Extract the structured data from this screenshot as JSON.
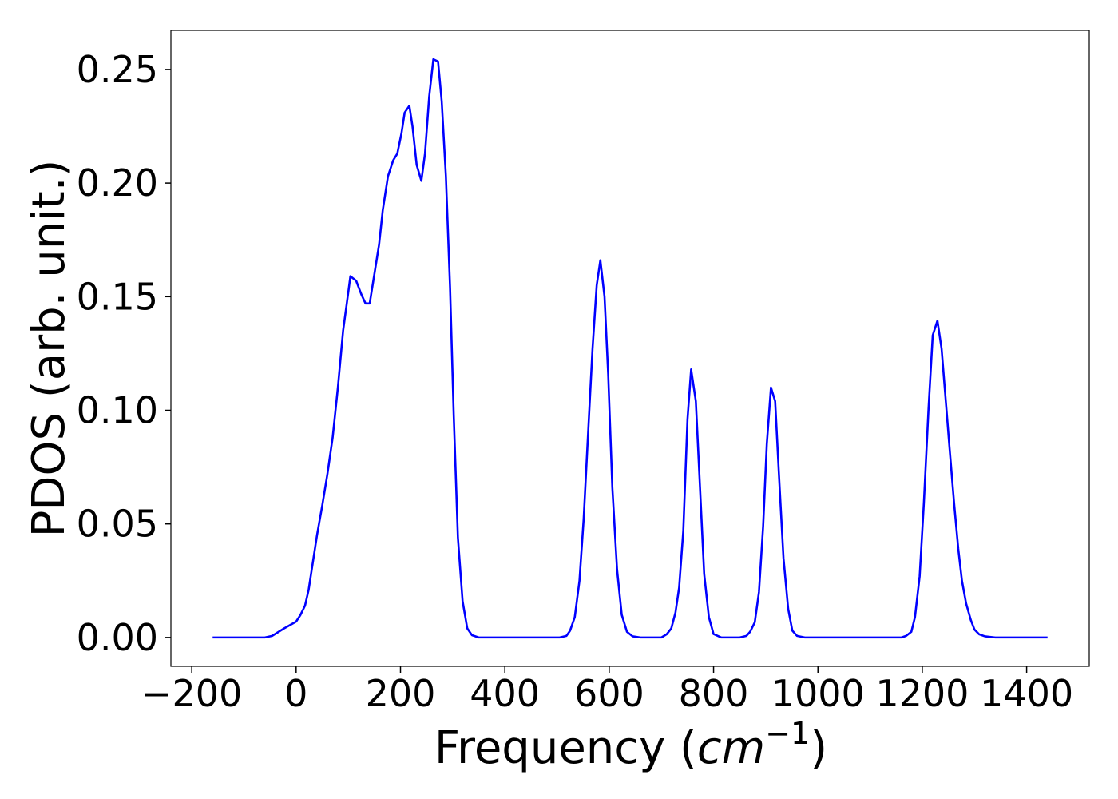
{
  "chart_data": {
    "type": "line",
    "xlabel": {
      "parts": [
        "Frequency (",
        "cm",
        "−1",
        ")"
      ]
    },
    "ylabel": "PDOS (arb. unit.)",
    "xlim": [
      -240,
      1520
    ],
    "ylim": [
      -0.0127,
      0.2672
    ],
    "xticks": [
      {
        "value": -200,
        "label": "−200"
      },
      0,
      200,
      400,
      600,
      800,
      1000,
      1200,
      1400
    ],
    "yticks": [
      {
        "value": 0,
        "label": "0.00"
      },
      {
        "value": 0.05,
        "label": "0.05"
      },
      {
        "value": 0.1,
        "label": "0.10"
      },
      {
        "value": 0.15,
        "label": "0.15"
      },
      {
        "value": 0.2,
        "label": "0.20"
      },
      {
        "value": 0.25,
        "label": "0.25"
      }
    ],
    "grid": false,
    "series": [
      {
        "color": "#0000ff",
        "x": [
          -160,
          -100,
          -60,
          -46,
          -23,
          0,
          8,
          17,
          24,
          30,
          40,
          50,
          60,
          70,
          80,
          90,
          100,
          104,
          115,
          125,
          133,
          141,
          150,
          159,
          166,
          176,
          186,
          194,
          202,
          208,
          217,
          223,
          231,
          240,
          247,
          255,
          263,
          272,
          279,
          287,
          295,
          302,
          310,
          319,
          328,
          337,
          350,
          450,
          505,
          518,
          525,
          534,
          543,
          551,
          560,
          568,
          576,
          583,
          591,
          598,
          606,
          615,
          624,
          634,
          645,
          660,
          700,
          710,
          719,
          727,
          734,
          742,
          750,
          757,
          766,
          774,
          782,
          791,
          800,
          815,
          850,
          863,
          870,
          879,
          887,
          895,
          902,
          910,
          918,
          925,
          934,
          943,
          951,
          960,
          975,
          1100,
          1160,
          1169,
          1179,
          1186,
          1195,
          1203,
          1212,
          1220,
          1229,
          1237,
          1244,
          1252,
          1261,
          1269,
          1276,
          1284,
          1293,
          1300,
          1309,
          1320,
          1340,
          1440
        ],
        "values": [
          0,
          0,
          0,
          0.0007,
          0.004,
          0.007,
          0.0098,
          0.014,
          0.021,
          0.03,
          0.045,
          0.058,
          0.072,
          0.088,
          0.11,
          0.135,
          0.152,
          0.159,
          0.157,
          0.151,
          0.147,
          0.147,
          0.16,
          0.173,
          0.188,
          0.203,
          0.21,
          0.213,
          0.222,
          0.231,
          0.234,
          0.225,
          0.208,
          0.201,
          0.213,
          0.238,
          0.2545,
          0.2535,
          0.236,
          0.203,
          0.154,
          0.098,
          0.044,
          0.016,
          0.004,
          0.001,
          0,
          0,
          0,
          0.0007,
          0.003,
          0.009,
          0.025,
          0.052,
          0.092,
          0.127,
          0.155,
          0.166,
          0.15,
          0.116,
          0.066,
          0.03,
          0.01,
          0.0025,
          0.0005,
          0,
          0,
          0.0014,
          0.004,
          0.011,
          0.022,
          0.047,
          0.096,
          0.118,
          0.104,
          0.066,
          0.028,
          0.009,
          0.0015,
          0,
          0,
          0.0007,
          0.0025,
          0.0067,
          0.02,
          0.049,
          0.085,
          0.11,
          0.104,
          0.073,
          0.035,
          0.0126,
          0.003,
          0.0007,
          0,
          0,
          0,
          0.0007,
          0.0025,
          0.009,
          0.027,
          0.059,
          0.101,
          0.133,
          0.1394,
          0.127,
          0.107,
          0.084,
          0.059,
          0.039,
          0.025,
          0.015,
          0.0077,
          0.0035,
          0.0014,
          0.0005,
          0,
          0
        ]
      }
    ]
  }
}
